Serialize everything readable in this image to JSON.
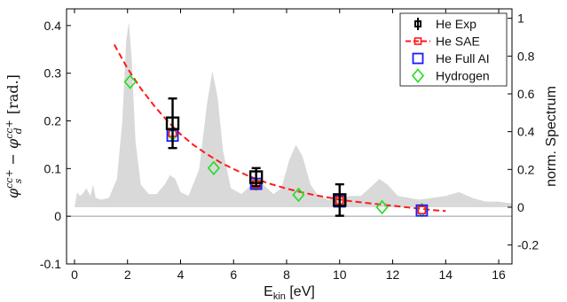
{
  "chart_data": {
    "type": "scatter",
    "title": "",
    "xlabel": {
      "main": "E",
      "sub": "kin",
      "unit": " [eV]"
    },
    "ylabel_left": {
      "phi": "φ",
      "s_sup": "cc+",
      "s_sub": "s",
      "minus": " − ",
      "d_sup": "cc+",
      "d_sub": "d",
      "unit": " [rad.]"
    },
    "ylabel_right": "norm. Spectrum",
    "xlim": [
      -0.3,
      16.5
    ],
    "ylim_left": [
      -0.1,
      0.435
    ],
    "ylim_right": [
      -0.3,
      1.05
    ],
    "x_ticks": [
      0,
      2,
      4,
      6,
      8,
      10,
      12,
      14,
      16
    ],
    "x_tick_labels": [
      "0",
      "2",
      "4",
      "6",
      "8",
      "10",
      "12",
      "14",
      "16"
    ],
    "y_left_ticks": [
      -0.1,
      0,
      0.1,
      0.2,
      0.3,
      0.4
    ],
    "y_left_tick_labels": [
      "-0.1",
      "0",
      "0.1",
      "0.2",
      "0.3",
      "0.4"
    ],
    "y_right_ticks": [
      -0.2,
      0,
      0.2,
      0.4,
      0.6,
      0.8,
      1
    ],
    "y_right_tick_labels": [
      "-0.2",
      "0",
      "0.2",
      "0.4",
      "0.6",
      "0.8",
      "1"
    ],
    "legend_position": "top-right",
    "zero_line": true,
    "series": [
      {
        "name": "He Exp",
        "style": "black squares with error bars",
        "color": "#000000",
        "points": [
          {
            "x": 3.7,
            "y": 0.195,
            "err": 0.052
          },
          {
            "x": 6.85,
            "y": 0.082,
            "err": 0.019
          },
          {
            "x": 10.0,
            "y": 0.034,
            "err": 0.033
          }
        ]
      },
      {
        "name": "He SAE",
        "style": "red dashed line with square markers",
        "color": "#ff1a1a",
        "curve_x": [
          1.5,
          2.0,
          2.5,
          3.0,
          3.5,
          4.0,
          4.5,
          5.0,
          5.5,
          6.0,
          6.5,
          7.0,
          7.5,
          8.0,
          8.5,
          9.0,
          9.5,
          10.0,
          10.5,
          11.0,
          11.5,
          12.0,
          12.5,
          13.0,
          13.5,
          14.0
        ],
        "curve_y": [
          0.36,
          0.31,
          0.268,
          0.232,
          0.2,
          0.172,
          0.149,
          0.13,
          0.113,
          0.099,
          0.086,
          0.075,
          0.066,
          0.058,
          0.051,
          0.045,
          0.04,
          0.035,
          0.031,
          0.028,
          0.025,
          0.022,
          0.019,
          0.016,
          0.013,
          0.011
        ],
        "markers": [
          {
            "x": 3.7,
            "y": 0.175
          },
          {
            "x": 6.85,
            "y": 0.067
          },
          {
            "x": 10.0,
            "y": 0.033
          },
          {
            "x": 13.1,
            "y": 0.013
          }
        ]
      },
      {
        "name": "He Full AI",
        "style": "blue open squares",
        "color": "#1a1aff",
        "points": [
          {
            "x": 3.7,
            "y": 0.169
          },
          {
            "x": 6.85,
            "y": 0.068
          },
          {
            "x": 10.0,
            "y": 0.031
          },
          {
            "x": 13.1,
            "y": 0.012
          }
        ]
      },
      {
        "name": "Hydrogen",
        "style": "green open diamonds",
        "color": "#22dd22",
        "points": [
          {
            "x": 2.1,
            "y": 0.282
          },
          {
            "x": 3.7,
            "y": 0.172
          },
          {
            "x": 5.25,
            "y": 0.101
          },
          {
            "x": 6.85,
            "y": 0.068
          },
          {
            "x": 8.45,
            "y": 0.045
          },
          {
            "x": 10.0,
            "y": 0.033
          },
          {
            "x": 11.6,
            "y": 0.019
          },
          {
            "x": 13.1,
            "y": 0.013
          }
        ]
      }
    ],
    "spectrum": {
      "axis": "right",
      "color": "#d9d9d9",
      "x": [
        0.0,
        0.1,
        0.2,
        0.3,
        0.45,
        0.6,
        0.7,
        0.8,
        1.0,
        1.3,
        1.6,
        1.8,
        1.95,
        2.05,
        2.15,
        2.3,
        2.5,
        2.8,
        3.1,
        3.4,
        3.6,
        3.8,
        4.0,
        4.3,
        4.7,
        5.0,
        5.2,
        5.4,
        5.6,
        5.9,
        6.3,
        6.6,
        6.9,
        7.2,
        7.5,
        7.8,
        8.1,
        8.35,
        8.6,
        8.9,
        9.2,
        9.6,
        10.0,
        10.4,
        10.8,
        11.2,
        11.5,
        11.8,
        12.2,
        12.6,
        13.0,
        13.5,
        14.0,
        14.5,
        15.0,
        15.5,
        16.0,
        16.5
      ],
      "y": [
        0.0,
        0.08,
        0.06,
        0.07,
        0.1,
        0.06,
        0.12,
        0.05,
        0.04,
        0.05,
        0.15,
        0.45,
        0.88,
        0.98,
        0.8,
        0.35,
        0.12,
        0.07,
        0.07,
        0.12,
        0.17,
        0.15,
        0.08,
        0.06,
        0.2,
        0.55,
        0.72,
        0.58,
        0.3,
        0.1,
        0.07,
        0.11,
        0.15,
        0.11,
        0.07,
        0.1,
        0.25,
        0.33,
        0.27,
        0.12,
        0.06,
        0.04,
        0.05,
        0.06,
        0.06,
        0.11,
        0.15,
        0.12,
        0.06,
        0.05,
        0.04,
        0.05,
        0.06,
        0.08,
        0.05,
        0.03,
        0.03,
        0.02
      ]
    }
  }
}
